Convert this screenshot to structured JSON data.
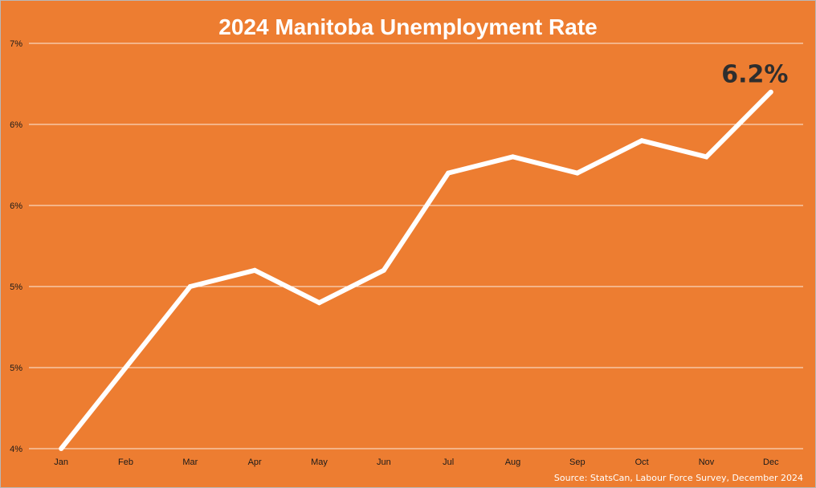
{
  "chart_data": {
    "type": "line",
    "title": "2024 Manitoba Unemployment Rate",
    "categories": [
      "Jan",
      "Feb",
      "Mar",
      "Apr",
      "May",
      "Jun",
      "Jul",
      "Aug",
      "Sep",
      "Oct",
      "Nov",
      "Dec"
    ],
    "y_ticks": [
      {
        "value": 4.0,
        "label": "4%"
      },
      {
        "value": 4.5,
        "label": "5%"
      },
      {
        "value": 5.0,
        "label": "5%"
      },
      {
        "value": 5.5,
        "label": "6%"
      },
      {
        "value": 6.0,
        "label": "6%"
      },
      {
        "value": 6.5,
        "label": "7%"
      }
    ],
    "ylim": [
      4.0,
      6.5
    ],
    "series": [
      {
        "values": [
          4.0,
          4.5,
          5.0,
          5.1,
          4.9,
          5.1,
          5.7,
          5.8,
          5.7,
          5.9,
          5.8,
          6.2
        ]
      }
    ],
    "annotation": {
      "text": "6.2%",
      "category": "Dec"
    },
    "source": "Source: StatsCan, Labour Force Survey, December 2024",
    "grid": true,
    "legend": "none",
    "xlabel": "",
    "ylabel": ""
  },
  "colors": {
    "background": "#ED7D31",
    "line": "#FFFFFF",
    "gridline": "#FFFFFF",
    "title": "#FFFFFF",
    "callout": "#2E2E2E"
  }
}
